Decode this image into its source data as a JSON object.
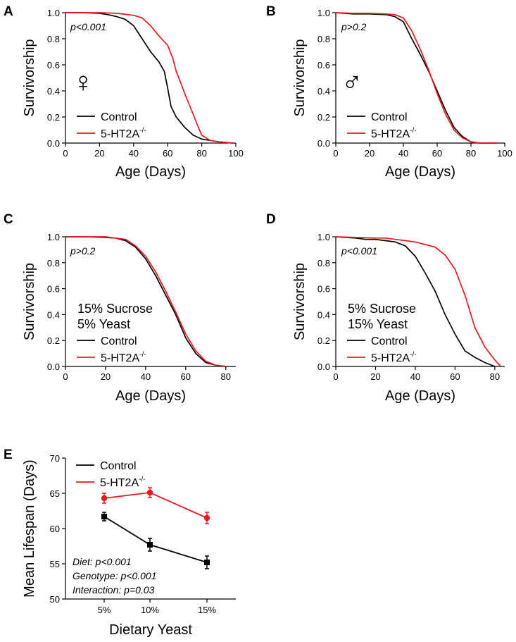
{
  "colors": {
    "control": "#000000",
    "mutant": "#e8191f"
  },
  "legend": {
    "control": "Control",
    "mutant_base": "5-HT2A",
    "mutant_sup": "-/-"
  },
  "chart_data": [
    {
      "panel": "A",
      "type": "line",
      "xlabel": "Age (Days)",
      "ylabel": "Survivorship",
      "xlim": [
        0,
        100
      ],
      "ylim": [
        0,
        1.0
      ],
      "xticks": [
        0,
        20,
        40,
        60,
        80,
        100
      ],
      "yticks": [
        0.0,
        0.2,
        0.4,
        0.6,
        0.8,
        1.0
      ],
      "stat": "p<0.001",
      "sex_symbol": "♀",
      "sex_icon": "female-symbol-icon",
      "series": [
        {
          "name": "Control",
          "x": [
            0,
            10,
            20,
            25,
            30,
            35,
            40,
            45,
            50,
            55,
            58,
            60,
            62,
            65,
            70,
            75,
            80,
            85,
            90,
            98
          ],
          "y": [
            1,
            1,
            0.995,
            0.985,
            0.97,
            0.95,
            0.9,
            0.8,
            0.7,
            0.62,
            0.55,
            0.42,
            0.28,
            0.2,
            0.12,
            0.06,
            0.03,
            0.02,
            0.01,
            0.0
          ]
        },
        {
          "name": "5-HT2A-/-",
          "x": [
            0,
            10,
            20,
            30,
            40,
            45,
            50,
            55,
            60,
            63,
            65,
            68,
            70,
            75,
            78,
            80,
            85,
            90,
            98
          ],
          "y": [
            1,
            1,
            1,
            0.995,
            0.98,
            0.96,
            0.9,
            0.82,
            0.75,
            0.65,
            0.55,
            0.45,
            0.38,
            0.22,
            0.12,
            0.06,
            0.02,
            0.01,
            0.0
          ]
        }
      ]
    },
    {
      "panel": "B",
      "type": "line",
      "xlabel": "Age (Days)",
      "ylabel": "Survivorship",
      "xlim": [
        0,
        100
      ],
      "ylim": [
        0,
        1.0
      ],
      "xticks": [
        0,
        20,
        40,
        60,
        80,
        100
      ],
      "yticks": [
        0.0,
        0.2,
        0.4,
        0.6,
        0.8,
        1.0
      ],
      "stat": "p>0.2",
      "sex_symbol": "♂",
      "sex_icon": "male-symbol-icon",
      "series": [
        {
          "name": "Control",
          "x": [
            0,
            10,
            20,
            30,
            35,
            40,
            45,
            50,
            55,
            60,
            65,
            70,
            75,
            80,
            85,
            95
          ],
          "y": [
            1,
            0.99,
            0.99,
            0.985,
            0.97,
            0.93,
            0.8,
            0.68,
            0.55,
            0.4,
            0.25,
            0.12,
            0.05,
            0.01,
            0.0,
            0.0
          ]
        },
        {
          "name": "5-HT2A-/-",
          "x": [
            0,
            10,
            20,
            30,
            35,
            40,
            45,
            50,
            55,
            60,
            65,
            70,
            75,
            80,
            85,
            95
          ],
          "y": [
            1,
            0.995,
            0.995,
            0.99,
            0.985,
            0.96,
            0.86,
            0.72,
            0.56,
            0.38,
            0.22,
            0.1,
            0.04,
            0.01,
            0.0,
            0.0
          ]
        }
      ]
    },
    {
      "panel": "C",
      "type": "line",
      "xlabel": "Age (Days)",
      "ylabel": "Survivorship",
      "xlim": [
        0,
        85
      ],
      "ylim": [
        0,
        1.0
      ],
      "xticks": [
        0,
        20,
        40,
        60,
        80
      ],
      "yticks": [
        0.0,
        0.2,
        0.4,
        0.6,
        0.8,
        1.0
      ],
      "stat": "p>0.2",
      "note": [
        "15% Sucrose",
        "5% Yeast"
      ],
      "series": [
        {
          "name": "Control",
          "x": [
            0,
            10,
            20,
            25,
            30,
            35,
            40,
            45,
            50,
            55,
            60,
            65,
            70,
            75,
            80
          ],
          "y": [
            1,
            1,
            0.995,
            0.99,
            0.97,
            0.92,
            0.83,
            0.7,
            0.55,
            0.4,
            0.22,
            0.1,
            0.03,
            0.01,
            0.0
          ]
        },
        {
          "name": "5-HT2A-/-",
          "x": [
            0,
            10,
            20,
            25,
            30,
            35,
            40,
            45,
            50,
            55,
            60,
            65,
            70,
            75,
            80
          ],
          "y": [
            1,
            1,
            1,
            0.99,
            0.98,
            0.93,
            0.85,
            0.73,
            0.58,
            0.42,
            0.25,
            0.12,
            0.04,
            0.01,
            0.0
          ]
        }
      ]
    },
    {
      "panel": "D",
      "type": "line",
      "xlabel": "Age (Days)",
      "ylabel": "Survivorship",
      "xlim": [
        0,
        85
      ],
      "ylim": [
        0,
        1.0
      ],
      "xticks": [
        0,
        20,
        40,
        60,
        80
      ],
      "yticks": [
        0.0,
        0.2,
        0.4,
        0.6,
        0.8,
        1.0
      ],
      "stat": "p<0.001",
      "note": [
        "5% Sucrose",
        "15% Yeast"
      ],
      "series": [
        {
          "name": "Control",
          "x": [
            0,
            10,
            15,
            20,
            25,
            30,
            35,
            40,
            45,
            50,
            55,
            60,
            65,
            70,
            75,
            80
          ],
          "y": [
            1,
            0.99,
            0.98,
            0.98,
            0.97,
            0.96,
            0.93,
            0.85,
            0.72,
            0.58,
            0.4,
            0.25,
            0.12,
            0.07,
            0.03,
            0.0
          ]
        },
        {
          "name": "5-HT2A-/-",
          "x": [
            0,
            10,
            20,
            25,
            30,
            35,
            40,
            45,
            50,
            55,
            60,
            65,
            70,
            75,
            80,
            83
          ],
          "y": [
            1,
            0.995,
            0.99,
            0.99,
            0.98,
            0.97,
            0.96,
            0.94,
            0.92,
            0.86,
            0.75,
            0.55,
            0.3,
            0.15,
            0.05,
            0.0
          ]
        }
      ]
    },
    {
      "panel": "E",
      "type": "line",
      "xlabel": "Dietary Yeast",
      "ylabel": "Mean Lifespan (Days)",
      "categories": [
        "5%",
        "10%",
        "15%"
      ],
      "ylim": [
        50,
        70
      ],
      "yticks": [
        50,
        55,
        60,
        65,
        70
      ],
      "stats": [
        "Diet: p<0.001",
        "Genotype: p<0.001",
        "Interaction: p=0.03"
      ],
      "series": [
        {
          "name": "Control",
          "values": [
            61.7,
            57.7,
            55.2
          ],
          "err": [
            0.6,
            0.9,
            0.9
          ]
        },
        {
          "name": "5-HT2A-/-",
          "values": [
            64.3,
            65.1,
            61.5
          ],
          "err": [
            0.7,
            0.7,
            0.8
          ]
        }
      ]
    }
  ]
}
